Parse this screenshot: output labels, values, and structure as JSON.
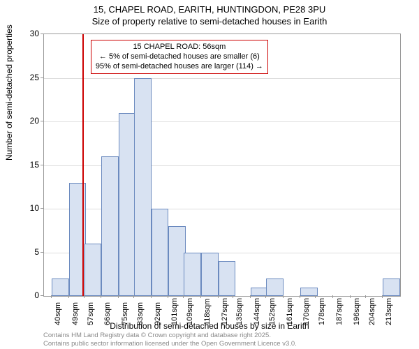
{
  "title": {
    "line1": "15, CHAPEL ROAD, EARITH, HUNTINGDON, PE28 3PU",
    "line2": "Size of property relative to semi-detached houses in Earith"
  },
  "chart": {
    "type": "histogram",
    "y_axis_label": "Number of semi-detached properties",
    "x_axis_label": "Distribution of semi-detached houses by size in Earith",
    "ylim": [
      0,
      30
    ],
    "ytick_step": 5,
    "y_ticks": [
      0,
      5,
      10,
      15,
      20,
      25,
      30
    ],
    "x_ticks": [
      40,
      49,
      57,
      66,
      75,
      83,
      92,
      101,
      109,
      118,
      127,
      135,
      144,
      152,
      161,
      170,
      178,
      187,
      196,
      204,
      213
    ],
    "x_tick_suffix": "sqm",
    "bars": [
      {
        "x": 40,
        "value": 2
      },
      {
        "x": 49,
        "value": 13
      },
      {
        "x": 57,
        "value": 6
      },
      {
        "x": 66,
        "value": 16
      },
      {
        "x": 75,
        "value": 21
      },
      {
        "x": 83,
        "value": 25
      },
      {
        "x": 92,
        "value": 10
      },
      {
        "x": 101,
        "value": 8
      },
      {
        "x": 109,
        "value": 5
      },
      {
        "x": 118,
        "value": 5
      },
      {
        "x": 127,
        "value": 4
      },
      {
        "x": 135,
        "value": 0
      },
      {
        "x": 144,
        "value": 1
      },
      {
        "x": 152,
        "value": 2
      },
      {
        "x": 161,
        "value": 0
      },
      {
        "x": 170,
        "value": 1
      },
      {
        "x": 178,
        "value": 0
      },
      {
        "x": 187,
        "value": 0
      },
      {
        "x": 196,
        "value": 0
      },
      {
        "x": 204,
        "value": 0
      },
      {
        "x": 213,
        "value": 2
      }
    ],
    "bar_fill_color": "#d8e2f2",
    "bar_border_color": "#6b8abf",
    "grid_color": "#dddddd",
    "axis_color": "#999999",
    "background_color": "#ffffff",
    "reference_line": {
      "x_value": 56,
      "color": "#cc0000",
      "width": 2
    },
    "annotation": {
      "line1": "15 CHAPEL ROAD: 56sqm",
      "line2": "← 5% of semi-detached houses are smaller (6)",
      "line3": "95% of semi-detached houses are larger (114) →",
      "border_color": "#cc0000",
      "background_color": "#ffffff",
      "fontsize": 11
    },
    "x_range": [
      36,
      222
    ]
  },
  "footer": {
    "line1": "Contains HM Land Registry data © Crown copyright and database right 2025.",
    "line2": "Contains public sector information licensed under the Open Government Licence v3.0."
  }
}
